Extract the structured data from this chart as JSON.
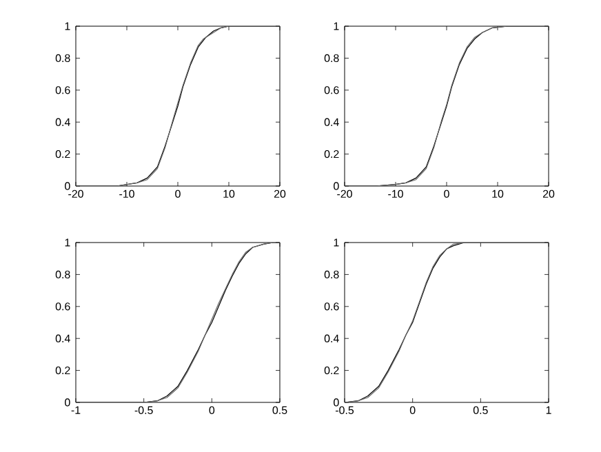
{
  "chart_data": [
    {
      "type": "line",
      "xlim": [
        -20,
        20
      ],
      "ylim": [
        0,
        1
      ],
      "xticks": [
        -20,
        -10,
        0,
        10,
        20
      ],
      "yticks": [
        0,
        0.2,
        0.4,
        0.6,
        0.8,
        1
      ],
      "line_style": "solid",
      "marker": "none",
      "grid": false,
      "series": [
        {
          "color": "#000000",
          "x": [
            -20,
            -12,
            -10,
            -8,
            -6,
            -4,
            -2.5,
            -1,
            0,
            1,
            2.5,
            4,
            5.5,
            7,
            8.5,
            10,
            20
          ],
          "values": [
            0,
            0,
            0.01,
            0.02,
            0.05,
            0.12,
            0.25,
            0.4,
            0.5,
            0.62,
            0.76,
            0.87,
            0.93,
            0.97,
            0.99,
            1,
            1
          ]
        },
        {
          "color": "#666666",
          "x": [
            -20,
            -12,
            -10,
            -8,
            -6,
            -4,
            -2.5,
            -1,
            0,
            1,
            2.5,
            4,
            5,
            7,
            8.5,
            10,
            20
          ],
          "values": [
            0,
            0,
            0.01,
            0.02,
            0.04,
            0.11,
            0.24,
            0.41,
            0.52,
            0.63,
            0.77,
            0.88,
            0.92,
            0.96,
            0.99,
            1,
            1
          ]
        }
      ]
    },
    {
      "type": "line",
      "xlim": [
        -20,
        20
      ],
      "ylim": [
        0,
        1
      ],
      "xticks": [
        -20,
        -10,
        0,
        10,
        20
      ],
      "yticks": [
        0,
        0.2,
        0.4,
        0.6,
        0.8,
        1
      ],
      "line_style": "solid",
      "marker": "none",
      "grid": false,
      "series": [
        {
          "color": "#000000",
          "x": [
            -20,
            -14,
            -10,
            -8,
            -6,
            -4,
            -2.5,
            -1,
            0,
            1,
            2.5,
            4,
            5.5,
            7,
            9,
            12,
            20
          ],
          "values": [
            0,
            0,
            0.01,
            0.02,
            0.05,
            0.12,
            0.25,
            0.4,
            0.5,
            0.62,
            0.76,
            0.86,
            0.92,
            0.96,
            0.99,
            1,
            1
          ]
        },
        {
          "color": "#666666",
          "x": [
            -20,
            -14,
            -10,
            -8,
            -6,
            -4,
            -2.5,
            -1,
            0,
            1,
            2.5,
            4,
            5.5,
            7,
            9,
            12,
            20
          ],
          "values": [
            0,
            0,
            0.01,
            0.02,
            0.04,
            0.11,
            0.24,
            0.41,
            0.51,
            0.63,
            0.77,
            0.87,
            0.93,
            0.96,
            0.99,
            1,
            1
          ]
        }
      ]
    },
    {
      "type": "line",
      "xlim": [
        -1,
        0.5
      ],
      "ylim": [
        0,
        1
      ],
      "xticks": [
        -1,
        -0.5,
        0,
        0.5
      ],
      "yticks": [
        0,
        0.2,
        0.4,
        0.6,
        0.8,
        1
      ],
      "line_style": "solid",
      "marker": "none",
      "grid": false,
      "series": [
        {
          "color": "#000000",
          "x": [
            -1,
            -0.5,
            -0.4,
            -0.33,
            -0.25,
            -0.18,
            -0.1,
            -0.05,
            0,
            0.05,
            0.1,
            0.15,
            0.2,
            0.25,
            0.3,
            0.38,
            0.45,
            0.5
          ],
          "values": [
            0,
            0,
            0.01,
            0.04,
            0.1,
            0.2,
            0.33,
            0.42,
            0.5,
            0.6,
            0.7,
            0.79,
            0.87,
            0.93,
            0.97,
            0.99,
            1,
            1
          ]
        },
        {
          "color": "#666666",
          "x": [
            -1,
            -0.5,
            -0.4,
            -0.33,
            -0.25,
            -0.18,
            -0.1,
            -0.05,
            0,
            0.05,
            0.1,
            0.15,
            0.2,
            0.25,
            0.3,
            0.38,
            0.45,
            0.5
          ],
          "values": [
            0,
            0,
            0.01,
            0.03,
            0.09,
            0.19,
            0.32,
            0.42,
            0.52,
            0.62,
            0.71,
            0.8,
            0.88,
            0.94,
            0.97,
            0.99,
            1,
            1
          ]
        }
      ]
    },
    {
      "type": "line",
      "xlim": [
        -0.5,
        1
      ],
      "ylim": [
        0,
        1
      ],
      "xticks": [
        -0.5,
        0,
        0.5,
        1
      ],
      "yticks": [
        0,
        0.2,
        0.4,
        0.6,
        0.8,
        1
      ],
      "line_style": "solid",
      "marker": "none",
      "grid": false,
      "series": [
        {
          "color": "#000000",
          "x": [
            -0.5,
            -0.4,
            -0.33,
            -0.25,
            -0.18,
            -0.1,
            -0.05,
            0,
            0.05,
            0.1,
            0.15,
            0.2,
            0.25,
            0.3,
            0.38,
            0.45,
            1
          ],
          "values": [
            0,
            0.01,
            0.04,
            0.1,
            0.2,
            0.33,
            0.42,
            0.5,
            0.62,
            0.74,
            0.84,
            0.91,
            0.96,
            0.98,
            1,
            1,
            1
          ]
        },
        {
          "color": "#666666",
          "x": [
            -0.5,
            -0.4,
            -0.33,
            -0.25,
            -0.18,
            -0.1,
            -0.05,
            0,
            0.05,
            0.1,
            0.15,
            0.2,
            0.25,
            0.3,
            0.38,
            0.45,
            1
          ],
          "values": [
            0,
            0.01,
            0.03,
            0.09,
            0.19,
            0.32,
            0.42,
            0.51,
            0.63,
            0.75,
            0.85,
            0.92,
            0.96,
            0.99,
            1,
            1,
            1
          ]
        }
      ]
    }
  ]
}
